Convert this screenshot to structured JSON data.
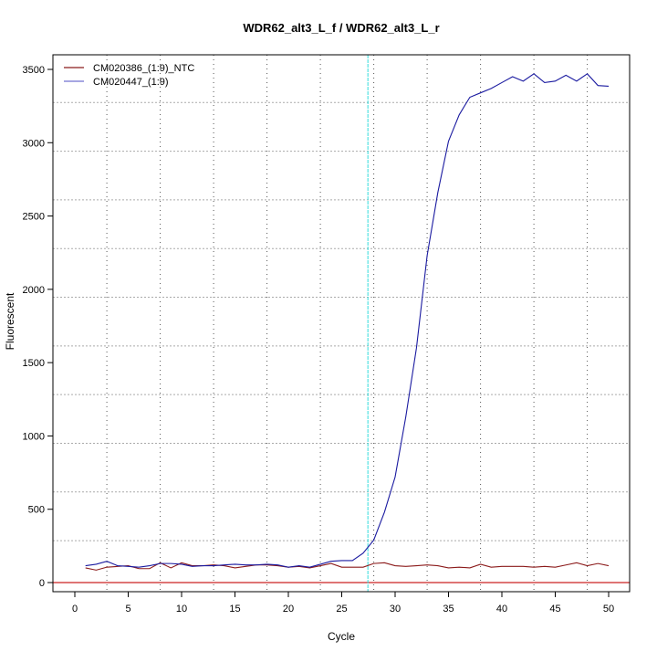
{
  "chart_data": {
    "type": "line",
    "title": "WDR62_alt3_L_f / WDR62_alt3_L_r",
    "xlabel": "Cycle",
    "ylabel": "Fluorescent",
    "xlim": [
      -2,
      52
    ],
    "ylim": [
      -50,
      3610
    ],
    "xticks": [
      0,
      5,
      10,
      15,
      20,
      25,
      30,
      35,
      40,
      45,
      50
    ],
    "yticks": [
      0,
      500,
      1000,
      1500,
      2000,
      2500,
      3000,
      3500
    ],
    "grid": true,
    "grid_x": [
      3,
      8,
      13,
      18,
      23,
      28,
      33,
      38,
      43,
      48
    ],
    "grid_y": [
      286,
      618,
      950,
      1282,
      1614,
      1946,
      2278,
      2610,
      2942,
      3274
    ],
    "threshold_cycle": 27.45,
    "baseline": 0,
    "legend_position": "top-left",
    "x": [
      1,
      2,
      3,
      4,
      5,
      6,
      7,
      8,
      9,
      10,
      11,
      12,
      13,
      14,
      15,
      16,
      17,
      18,
      19,
      20,
      21,
      22,
      23,
      24,
      25,
      26,
      27,
      28,
      29,
      30,
      31,
      32,
      33,
      34,
      35,
      36,
      37,
      38,
      39,
      40,
      41,
      42,
      43,
      44,
      45,
      46,
      47,
      48,
      49,
      50
    ],
    "series": [
      {
        "name": "CM020386_(1:9)_NTC",
        "color": "#8b1a1a",
        "values": [
          100,
          85,
          105,
          110,
          115,
          95,
          95,
          135,
          100,
          135,
          115,
          115,
          120,
          115,
          100,
          110,
          120,
          120,
          115,
          105,
          110,
          100,
          115,
          130,
          105,
          105,
          105,
          130,
          135,
          115,
          110,
          115,
          120,
          115,
          100,
          105,
          100,
          125,
          105,
          110,
          110,
          110,
          105,
          110,
          105,
          120,
          135,
          115,
          130,
          115
        ]
      },
      {
        "name": "CM020447_(1:9)",
        "color": "#1a1aa0",
        "values": [
          115,
          125,
          145,
          115,
          110,
          105,
          115,
          130,
          130,
          125,
          110,
          115,
          115,
          120,
          125,
          120,
          120,
          125,
          120,
          105,
          115,
          105,
          125,
          145,
          150,
          150,
          200,
          290,
          480,
          720,
          1130,
          1600,
          2230,
          2660,
          3010,
          3190,
          3310,
          3340,
          3370,
          3410,
          3450,
          3420,
          3470,
          3410,
          3420,
          3460,
          3420,
          3470,
          3390,
          3385
        ]
      }
    ],
    "colors": {
      "threshold": "#33dddd",
      "baseline": "#cc2222",
      "legend_swatch_1": "#8b1a1a",
      "legend_swatch_2": "#7070d0"
    }
  }
}
